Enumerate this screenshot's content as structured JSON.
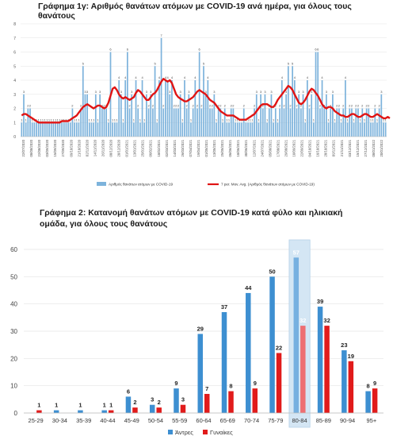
{
  "chart_data": [
    {
      "type": "bar",
      "title": "Γράφημα 1γ: Αριθμός θανάτων ατόμων με COVID-19 ανά ημέρα, για όλους τους θανάτους",
      "ylim": [
        0,
        8
      ],
      "yticks": [
        "0",
        "1",
        "2",
        "3",
        "4",
        "5",
        "6",
        "7",
        "8"
      ],
      "grid": true,
      "legend_position": "bottom",
      "xtick_labels": [
        "22/07/2020",
        "08/08/2020",
        "22/08/2020",
        "03/09/2020",
        "15/09/2020",
        "27/09/2020",
        "09/10/2020",
        "21/10/2020",
        "02/11/2020",
        "14/11/2020",
        "26/11/2020",
        "08/12/2020",
        "20/12/2020",
        "01/01/2021",
        "13/01/2021",
        "25/01/2021",
        "06/02/2021",
        "18/02/2021",
        "02/03/2021",
        "14/03/2021",
        "26/03/2021",
        "07/04/2021",
        "19/04/2021",
        "01/05/2021",
        "13/05/2021",
        "25/05/2021",
        "06/06/2021",
        "18/06/2021",
        "30/06/2021",
        "12/07/2021",
        "24/07/2021",
        "05/08/2021",
        "17/08/2021",
        "29/08/2021",
        "10/09/2021",
        "22/09/2021",
        "04/10/2021",
        "16/10/2021",
        "28/10/2021",
        "09/11/2021",
        "21/11/2021",
        "03/12/2021",
        "15/12/2021",
        "27/12/2021",
        "08/01/2022",
        "20/01/2022"
      ],
      "series": [
        {
          "name": "Αριθμός θανάτων ατόμων με COVID-19",
          "values": [
            1,
            3,
            1,
            2,
            2,
            1,
            1,
            1,
            1,
            1,
            1,
            1,
            1,
            1,
            1,
            1,
            1,
            1,
            1,
            1,
            1,
            1,
            1,
            1,
            2,
            1,
            1,
            1,
            2,
            5,
            3,
            3,
            1,
            1,
            1,
            3,
            1,
            3,
            2,
            2,
            2,
            1,
            6,
            1,
            1,
            1,
            4,
            3,
            1,
            4,
            6,
            2,
            3,
            1,
            4,
            2,
            1,
            4,
            1,
            3,
            2,
            3,
            2,
            5,
            1,
            4,
            7,
            2,
            4,
            4,
            3,
            4,
            2,
            2,
            2,
            3,
            1,
            4,
            2,
            3,
            1,
            2,
            4,
            2,
            6,
            2,
            5,
            3,
            4,
            2,
            2,
            3,
            1,
            2,
            2,
            1,
            2,
            1,
            1,
            2,
            2,
            1,
            1,
            1,
            1,
            2,
            1,
            1,
            1,
            1,
            2,
            3,
            1,
            3,
            2,
            3,
            1,
            2,
            3,
            1,
            2,
            1,
            2,
            4,
            2,
            3,
            5,
            2,
            5,
            4,
            2,
            3,
            2,
            3,
            1,
            4,
            2,
            3,
            1,
            6,
            6,
            2,
            4,
            2,
            3,
            1,
            2,
            3,
            1,
            2,
            2,
            1,
            2,
            4,
            1,
            2,
            2,
            1,
            2,
            2,
            1,
            2,
            1,
            2,
            2,
            1,
            1,
            2,
            1,
            2,
            3,
            1,
            1
          ]
        },
        {
          "name": "7 per. Mov. Avg. (Αριθμός θανάτων ατόμων με COVID-19)",
          "values": [
            1.5,
            1.6,
            1.6,
            1.5,
            1.4,
            1.3,
            1.2,
            1.1,
            1.0,
            1.0,
            1.0,
            1.0,
            1.0,
            1.0,
            1.0,
            1.0,
            1.0,
            1.0,
            1.0,
            1.1,
            1.1,
            1.1,
            1.1,
            1.2,
            1.3,
            1.4,
            1.5,
            1.7,
            1.9,
            2.1,
            2.2,
            2.3,
            2.2,
            2.1,
            2.0,
            2.1,
            2.2,
            2.2,
            2.1,
            2.0,
            2.1,
            2.4,
            2.9,
            3.4,
            3.5,
            3.3,
            3.0,
            2.8,
            2.7,
            2.8,
            2.7,
            2.6,
            2.7,
            2.8,
            3.1,
            3.3,
            3.2,
            3.0,
            2.8,
            2.6,
            2.6,
            2.8,
            3.0,
            3.1,
            3.3,
            3.6,
            3.9,
            4.1,
            4.0,
            3.9,
            4.0,
            3.8,
            3.4,
            3.0,
            2.8,
            2.7,
            2.6,
            2.5,
            2.5,
            2.6,
            2.7,
            2.8,
            3.0,
            3.2,
            3.3,
            3.2,
            3.1,
            3.0,
            2.8,
            2.6,
            2.5,
            2.4,
            2.2,
            2.0,
            1.8,
            1.7,
            1.6,
            1.5,
            1.5,
            1.5,
            1.5,
            1.4,
            1.3,
            1.2,
            1.2,
            1.2,
            1.2,
            1.3,
            1.4,
            1.5,
            1.6,
            1.8,
            2.0,
            2.2,
            2.3,
            2.3,
            2.3,
            2.2,
            2.1,
            2.1,
            2.3,
            2.6,
            2.8,
            3.0,
            3.2,
            3.4,
            3.6,
            3.5,
            3.3,
            3.0,
            2.7,
            2.4,
            2.3,
            2.4,
            2.6,
            2.9,
            3.2,
            3.4,
            3.3,
            3.1,
            2.9,
            2.6,
            2.3,
            2.1,
            2.0,
            2.1,
            2.1,
            2.0,
            1.8,
            1.7,
            1.6,
            1.5,
            1.5,
            1.4,
            1.4,
            1.5,
            1.6,
            1.6,
            1.5,
            1.4,
            1.4,
            1.5,
            1.6,
            1.6,
            1.5,
            1.4,
            1.4,
            1.5,
            1.6,
            1.5,
            1.4,
            1.3,
            1.3,
            1.4,
            1.3
          ]
        }
      ]
    },
    {
      "type": "bar",
      "title": "Γράφημα 2: Κατανομή θανάτων ατόμων με COVID-19 κατά φύλο και ηλικιακή ομάδα, για όλους τους θανάτους",
      "categories": [
        "25-29",
        "30-34",
        "35-39",
        "40-44",
        "45-49",
        "50-54",
        "55-59",
        "60-64",
        "65-69",
        "70-74",
        "75-79",
        "80-84",
        "85-89",
        "90-94",
        "95+"
      ],
      "ylim": [
        0,
        60
      ],
      "yticks": [
        "0",
        "10",
        "20",
        "30",
        "40",
        "50",
        "60"
      ],
      "grid": true,
      "legend_position": "bottom",
      "highlight_category": "80-84",
      "series": [
        {
          "name": "Άντρες",
          "color": "#3d8fd1",
          "values": [
            0,
            1,
            1,
            1,
            6,
            3,
            9,
            29,
            37,
            44,
            50,
            57,
            39,
            23,
            8
          ],
          "labels": [
            "",
            "1",
            "1",
            "1",
            "6",
            "3",
            "9",
            "29",
            "37",
            "44",
            "50",
            "57",
            "39",
            "23",
            "8"
          ]
        },
        {
          "name": "Γυναίκες",
          "color": "#e11b1b",
          "values": [
            1,
            0,
            0,
            1,
            2,
            2,
            3,
            7,
            8,
            9,
            22,
            32,
            32,
            19,
            9
          ],
          "labels": [
            "1",
            "",
            "",
            "1",
            "2",
            "2",
            "3",
            "7",
            "8",
            "9",
            "22",
            "32",
            "32",
            "19",
            "9"
          ]
        }
      ]
    }
  ]
}
